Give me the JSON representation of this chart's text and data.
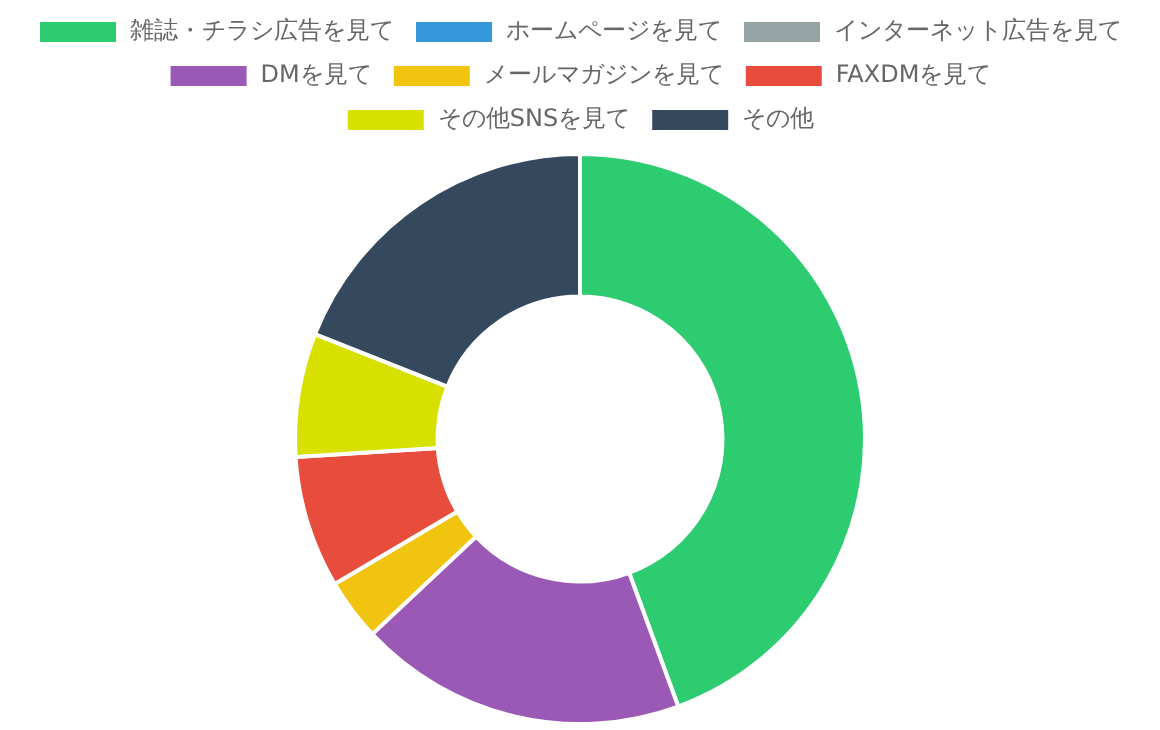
{
  "chart_data": {
    "type": "donut",
    "categories": [
      "雑誌・チラシ広告を見て",
      "ホームページを見て",
      "インターネット広告を見て",
      "DMを見て",
      "メールマガジンを見て",
      "FAXDMを見て",
      "その他SNSを見て",
      "その他"
    ],
    "values": [
      44.4,
      0,
      0,
      18.6,
      3.5,
      7.5,
      7.0,
      19.0
    ],
    "colors": [
      "#2ecc71",
      "#3498db",
      "#95a5a6",
      "#9b59b6",
      "#f1c40f",
      "#e74c3c",
      "#d8e000",
      "#34495e"
    ],
    "legend": "top"
  }
}
